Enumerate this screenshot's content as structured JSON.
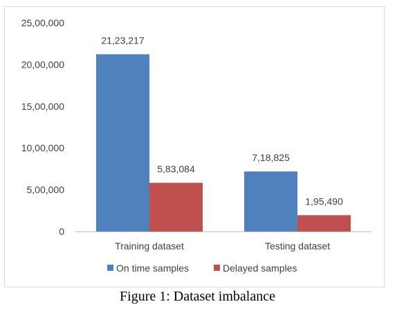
{
  "caption": "Figure 1: Dataset imbalance",
  "colors": {
    "on_time": "#4f81bd",
    "delayed": "#c0504d",
    "axis": "#bfbfbf"
  },
  "chart_data": {
    "type": "bar",
    "categories": [
      "Training dataset",
      "Testing dataset"
    ],
    "series": [
      {
        "name": "On time samples",
        "values": [
          2123217,
          718825
        ],
        "labels": [
          "21,23,217",
          "7,18,825"
        ]
      },
      {
        "name": "Delayed samples",
        "values": [
          583084,
          195490
        ],
        "labels": [
          "5,83,084",
          "1,95,490"
        ]
      }
    ],
    "ylim": [
      0,
      2500000
    ],
    "yticks": [
      0,
      500000,
      1000000,
      1500000,
      2000000,
      2500000
    ],
    "ytick_labels": [
      "0",
      "5,00,000",
      "10,00,000",
      "15,00,000",
      "20,00,000",
      "25,00,000"
    ],
    "title": "",
    "xlabel": "",
    "ylabel": "",
    "grid": false,
    "legend": "bottom"
  }
}
